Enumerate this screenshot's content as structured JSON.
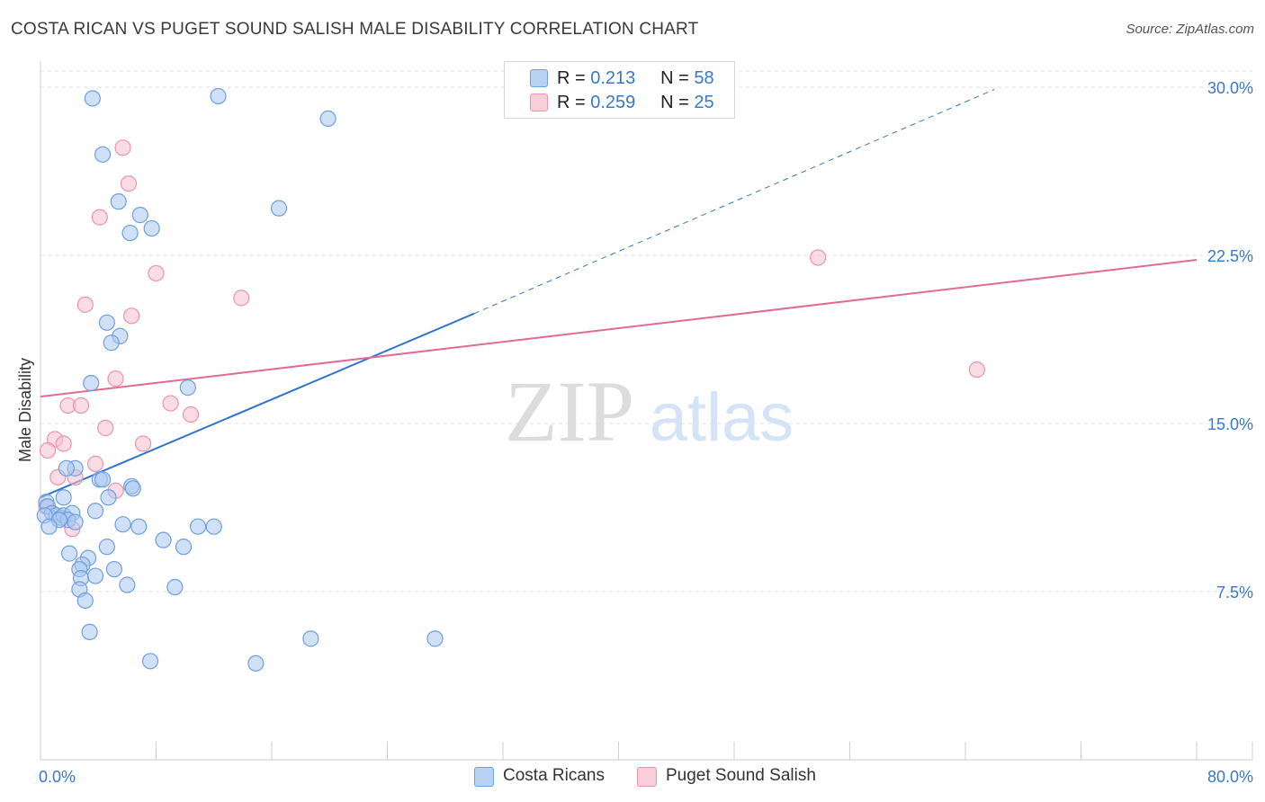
{
  "header": {
    "title": "COSTA RICAN VS PUGET SOUND SALISH MALE DISABILITY CORRELATION CHART",
    "source": "Source: ZipAtlas.com"
  },
  "watermark": {
    "zip": "ZIP",
    "atlas": "atlas"
  },
  "legend": {
    "rows": [
      {
        "r_label": "R =",
        "r_value": "0.213",
        "n_label": "N =",
        "n_value": "58"
      },
      {
        "r_label": "R =",
        "r_value": "0.259",
        "n_label": "N =",
        "n_value": "25"
      }
    ]
  },
  "bottom_legend": {
    "series0": "Costa Ricans",
    "series1": "Puget Sound Salish"
  },
  "colors": {
    "blue_fill": "#a9c8f0",
    "blue_stroke": "#6e9fe0",
    "blue_line": "#2f74cc",
    "pink_fill": "#f6bfcf",
    "pink_stroke": "#ec93ad",
    "pink_line": "#e06b96",
    "axis_text": "#3a78c9",
    "grid": "#e2e2e2"
  },
  "chart_data": {
    "type": "scatter",
    "title": "COSTA RICAN VS PUGET SOUND SALISH MALE DISABILITY CORRELATION CHART",
    "xlabel": "",
    "ylabel": "Male Disability",
    "xlim": [
      0,
      80
    ],
    "ylim": [
      0,
      31.5
    ],
    "x_tick_labels": [
      "0.0%",
      "80.0%"
    ],
    "y_ticks": [
      7.5,
      15.0,
      22.5,
      30.0
    ],
    "y_tick_labels": [
      "7.5%",
      "15.0%",
      "22.5%",
      "30.0%"
    ],
    "grid": true,
    "series": [
      {
        "name": "Costa Ricans",
        "R": 0.213,
        "N": 58,
        "points": [
          [
            3.6,
            29.5
          ],
          [
            12.3,
            29.6
          ],
          [
            19.9,
            28.6
          ],
          [
            4.3,
            27.0
          ],
          [
            5.4,
            24.9
          ],
          [
            6.9,
            24.3
          ],
          [
            16.5,
            24.6
          ],
          [
            6.2,
            23.5
          ],
          [
            7.7,
            23.7
          ],
          [
            4.6,
            19.5
          ],
          [
            5.5,
            18.9
          ],
          [
            4.9,
            18.6
          ],
          [
            3.5,
            16.8
          ],
          [
            10.2,
            16.6
          ],
          [
            2.4,
            13.0
          ],
          [
            1.8,
            13.0
          ],
          [
            4.1,
            12.5
          ],
          [
            4.3,
            12.5
          ],
          [
            6.3,
            12.2
          ],
          [
            6.4,
            12.1
          ],
          [
            4.7,
            11.7
          ],
          [
            1.6,
            11.7
          ],
          [
            0.4,
            11.5
          ],
          [
            0.5,
            11.3
          ],
          [
            0.8,
            11.0
          ],
          [
            1.1,
            10.9
          ],
          [
            1.4,
            10.8
          ],
          [
            1.6,
            10.9
          ],
          [
            2.2,
            11.0
          ],
          [
            1.9,
            10.7
          ],
          [
            0.3,
            10.9
          ],
          [
            1.3,
            10.7
          ],
          [
            2.4,
            10.6
          ],
          [
            3.8,
            11.1
          ],
          [
            0.6,
            10.4
          ],
          [
            5.7,
            10.5
          ],
          [
            6.8,
            10.4
          ],
          [
            10.9,
            10.4
          ],
          [
            8.5,
            9.8
          ],
          [
            4.6,
            9.5
          ],
          [
            9.9,
            9.5
          ],
          [
            2.0,
            9.2
          ],
          [
            3.3,
            9.0
          ],
          [
            2.9,
            8.7
          ],
          [
            2.7,
            8.5
          ],
          [
            5.1,
            8.5
          ],
          [
            2.8,
            8.1
          ],
          [
            3.8,
            8.2
          ],
          [
            6.0,
            7.8
          ],
          [
            9.3,
            7.7
          ],
          [
            2.7,
            7.6
          ],
          [
            3.1,
            7.1
          ],
          [
            3.4,
            5.7
          ],
          [
            18.7,
            5.4
          ],
          [
            27.3,
            5.4
          ],
          [
            7.6,
            4.4
          ],
          [
            14.9,
            4.3
          ],
          [
            12.0,
            10.4
          ]
        ],
        "trend": {
          "x0": 0,
          "y0": 11.7,
          "x1": 30,
          "y1": 19.9,
          "dashed_to_x": 66,
          "dashed_to_y": 29.9
        }
      },
      {
        "name": "Puget Sound Salish",
        "R": 0.259,
        "N": 25,
        "points": [
          [
            5.7,
            27.3
          ],
          [
            6.1,
            25.7
          ],
          [
            4.1,
            24.2
          ],
          [
            8.0,
            21.7
          ],
          [
            13.9,
            20.6
          ],
          [
            3.1,
            20.3
          ],
          [
            6.3,
            19.8
          ],
          [
            5.2,
            17.0
          ],
          [
            1.9,
            15.8
          ],
          [
            2.8,
            15.8
          ],
          [
            9.0,
            15.9
          ],
          [
            10.4,
            15.4
          ],
          [
            4.5,
            14.8
          ],
          [
            1.0,
            14.3
          ],
          [
            1.6,
            14.1
          ],
          [
            7.1,
            14.1
          ],
          [
            0.5,
            13.8
          ],
          [
            3.8,
            13.2
          ],
          [
            1.2,
            12.6
          ],
          [
            2.4,
            12.6
          ],
          [
            5.2,
            12.0
          ],
          [
            2.2,
            10.3
          ],
          [
            0.4,
            11.3
          ],
          [
            53.8,
            22.4
          ],
          [
            64.8,
            17.4
          ]
        ],
        "trend": {
          "x0": 0,
          "y0": 16.2,
          "x1": 80,
          "y1": 22.3
        }
      }
    ]
  }
}
